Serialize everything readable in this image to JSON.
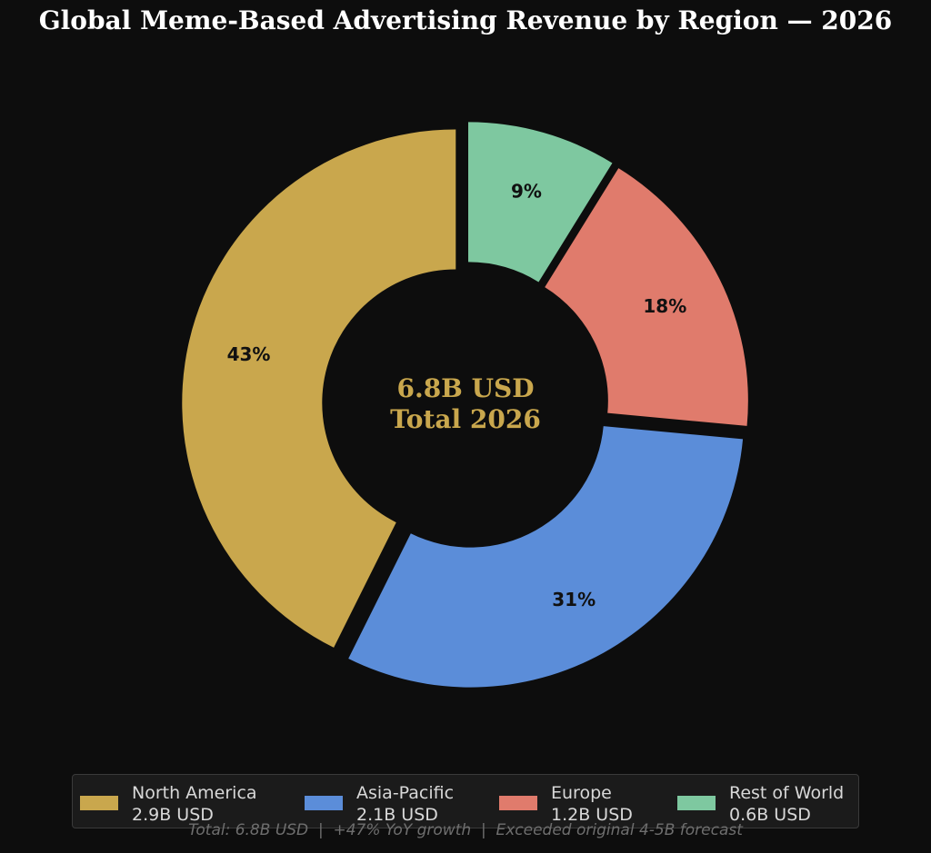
{
  "title": "Global Meme-Based Advertising Revenue by Region — 2026",
  "center_label": {
    "line1": "6.8B USD",
    "line2": "Total 2026",
    "color": "#c9a74d"
  },
  "footnote": "Total: 6.8B USD  |  +47% YoY growth  |  Exceeded original 4-5B forecast",
  "chart_data": {
    "type": "pie",
    "variant": "donut",
    "categories": [
      "North America",
      "Asia-Pacific",
      "Europe",
      "Rest of World"
    ],
    "values": [
      2.9,
      2.1,
      1.2,
      0.6
    ],
    "unit": "B USD",
    "percent_labels": [
      "43%",
      "31%",
      "18%",
      "9%"
    ],
    "colors": [
      "#c9a74d",
      "#5b8dd9",
      "#e07b6c",
      "#7ec8a0"
    ],
    "explode": true
  },
  "legend": {
    "placement": "bottom",
    "items": [
      {
        "name": "North America",
        "value": "2.9B USD",
        "color": "#c9a74d"
      },
      {
        "name": "Asia-Pacific",
        "value": "2.1B USD",
        "color": "#5b8dd9"
      },
      {
        "name": "Europe",
        "value": "1.2B USD",
        "color": "#e07b6c"
      },
      {
        "name": "Rest of World",
        "value": "0.6B USD",
        "color": "#7ec8a0"
      }
    ]
  }
}
